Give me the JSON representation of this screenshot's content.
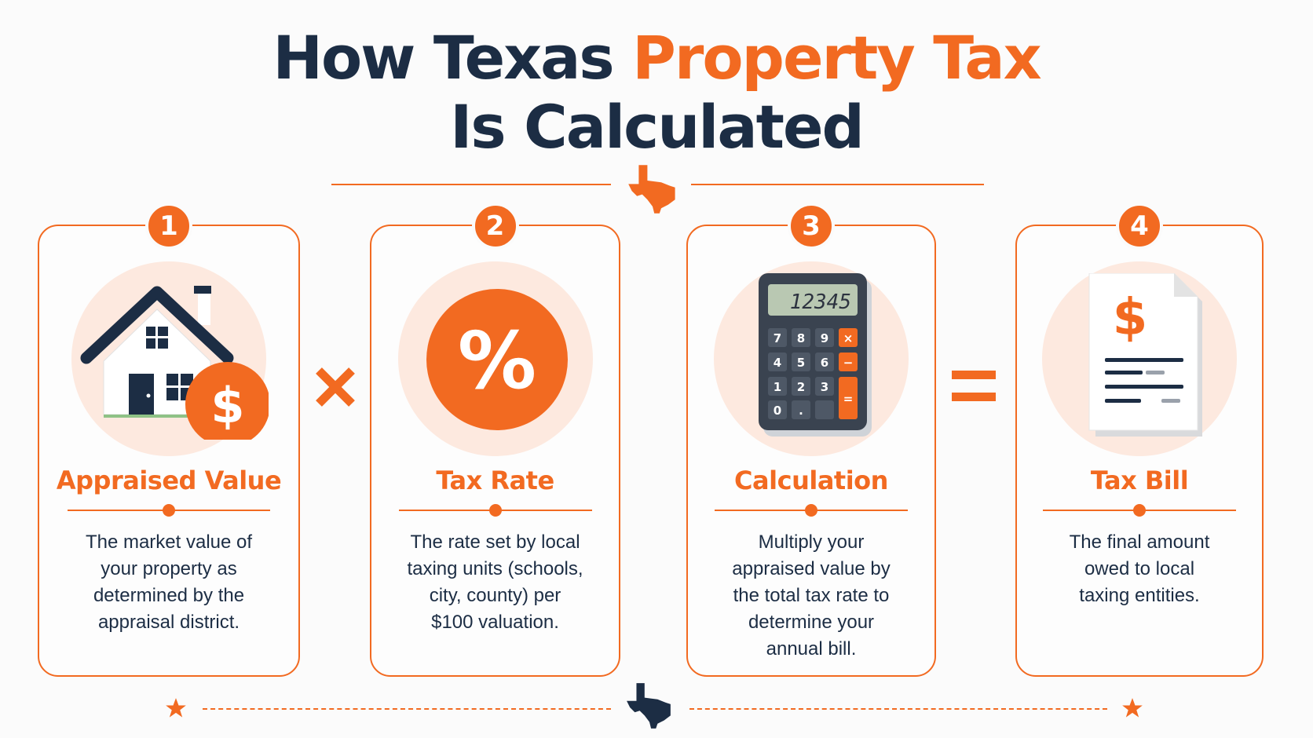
{
  "title": {
    "line1_part1": "How Texas",
    "line1_part2": "Property Tax",
    "line2": "Is Calculated"
  },
  "colors": {
    "accent": "#f26a21",
    "navy": "#1c2d44",
    "halo": "#fde9df"
  },
  "steps": [
    {
      "number": "1",
      "icon": "house-with-dollar-icon",
      "title": "Appraised Value",
      "description": [
        "The market value of",
        "your property as",
        "determined by the",
        "appraisal district."
      ]
    },
    {
      "number": "2",
      "icon": "percent-icon",
      "title": "Tax Rate",
      "description": [
        "The rate set by local",
        "taxing units (schools,",
        "city, county) per",
        "$100 valuation."
      ]
    },
    {
      "number": "3",
      "icon": "calculator-icon",
      "title": "Calculation",
      "calculator_display": "12345",
      "calculator_keys": [
        "7",
        "8",
        "9",
        "4",
        "5",
        "6",
        "1",
        "2",
        "3",
        "0",
        "."
      ],
      "description": [
        "Multiply your",
        "appraised value by",
        "the total tax rate to",
        "determine your",
        "annual bill."
      ]
    },
    {
      "number": "4",
      "icon": "tax-bill-document-icon",
      "title": "Tax Bill",
      "description": [
        "The final amount",
        "owed to local",
        "taxing entities."
      ]
    }
  ],
  "operators": {
    "multiply": "multiply-icon",
    "equals": "equals-icon"
  },
  "decorations": [
    "texas-map-icon",
    "star-icon"
  ]
}
